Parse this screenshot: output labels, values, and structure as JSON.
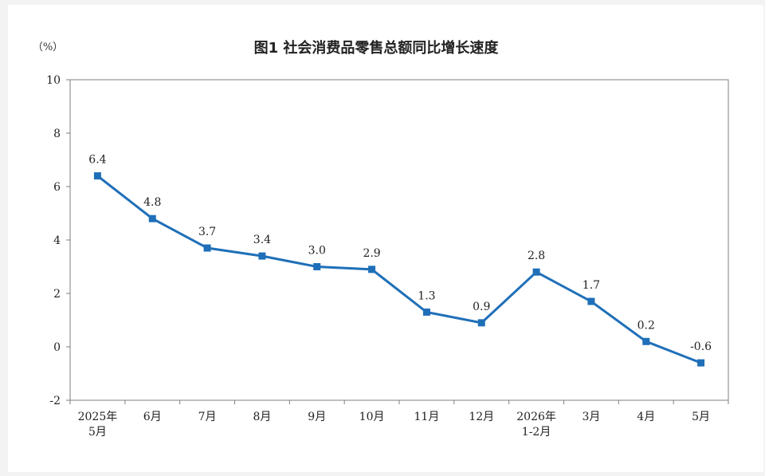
{
  "chart_data": {
    "type": "line",
    "title": "图1  社会消费品零售总额同比增长速度",
    "unit_label": "（%）",
    "categories": [
      [
        "2025年",
        "5月"
      ],
      [
        "6月"
      ],
      [
        "7月"
      ],
      [
        "8月"
      ],
      [
        "9月"
      ],
      [
        "10月"
      ],
      [
        "11月"
      ],
      [
        "12月"
      ],
      [
        "2026年",
        "1-2月"
      ],
      [
        "3月"
      ],
      [
        "4月"
      ],
      [
        "5月"
      ]
    ],
    "series": [
      {
        "values": [
          6.4,
          4.8,
          3.7,
          3.4,
          3.0,
          2.9,
          1.3,
          0.9,
          2.8,
          1.7,
          0.2,
          -0.6
        ],
        "labels": [
          "6.4",
          "4.8",
          "3.7",
          "3.4",
          "3.0",
          "2.9",
          "1.3",
          "0.9",
          "2.8",
          "1.7",
          "0.2",
          "-0.6"
        ],
        "color": "#1f6fb8"
      }
    ],
    "ylim": [
      -2,
      10
    ],
    "yticks": [
      -2,
      0,
      2,
      4,
      6,
      8,
      10
    ],
    "grid": false,
    "legend": "none"
  },
  "colors": {
    "line": "#1f6fb8",
    "frame": "#7f7f7f",
    "text": "#222222"
  }
}
